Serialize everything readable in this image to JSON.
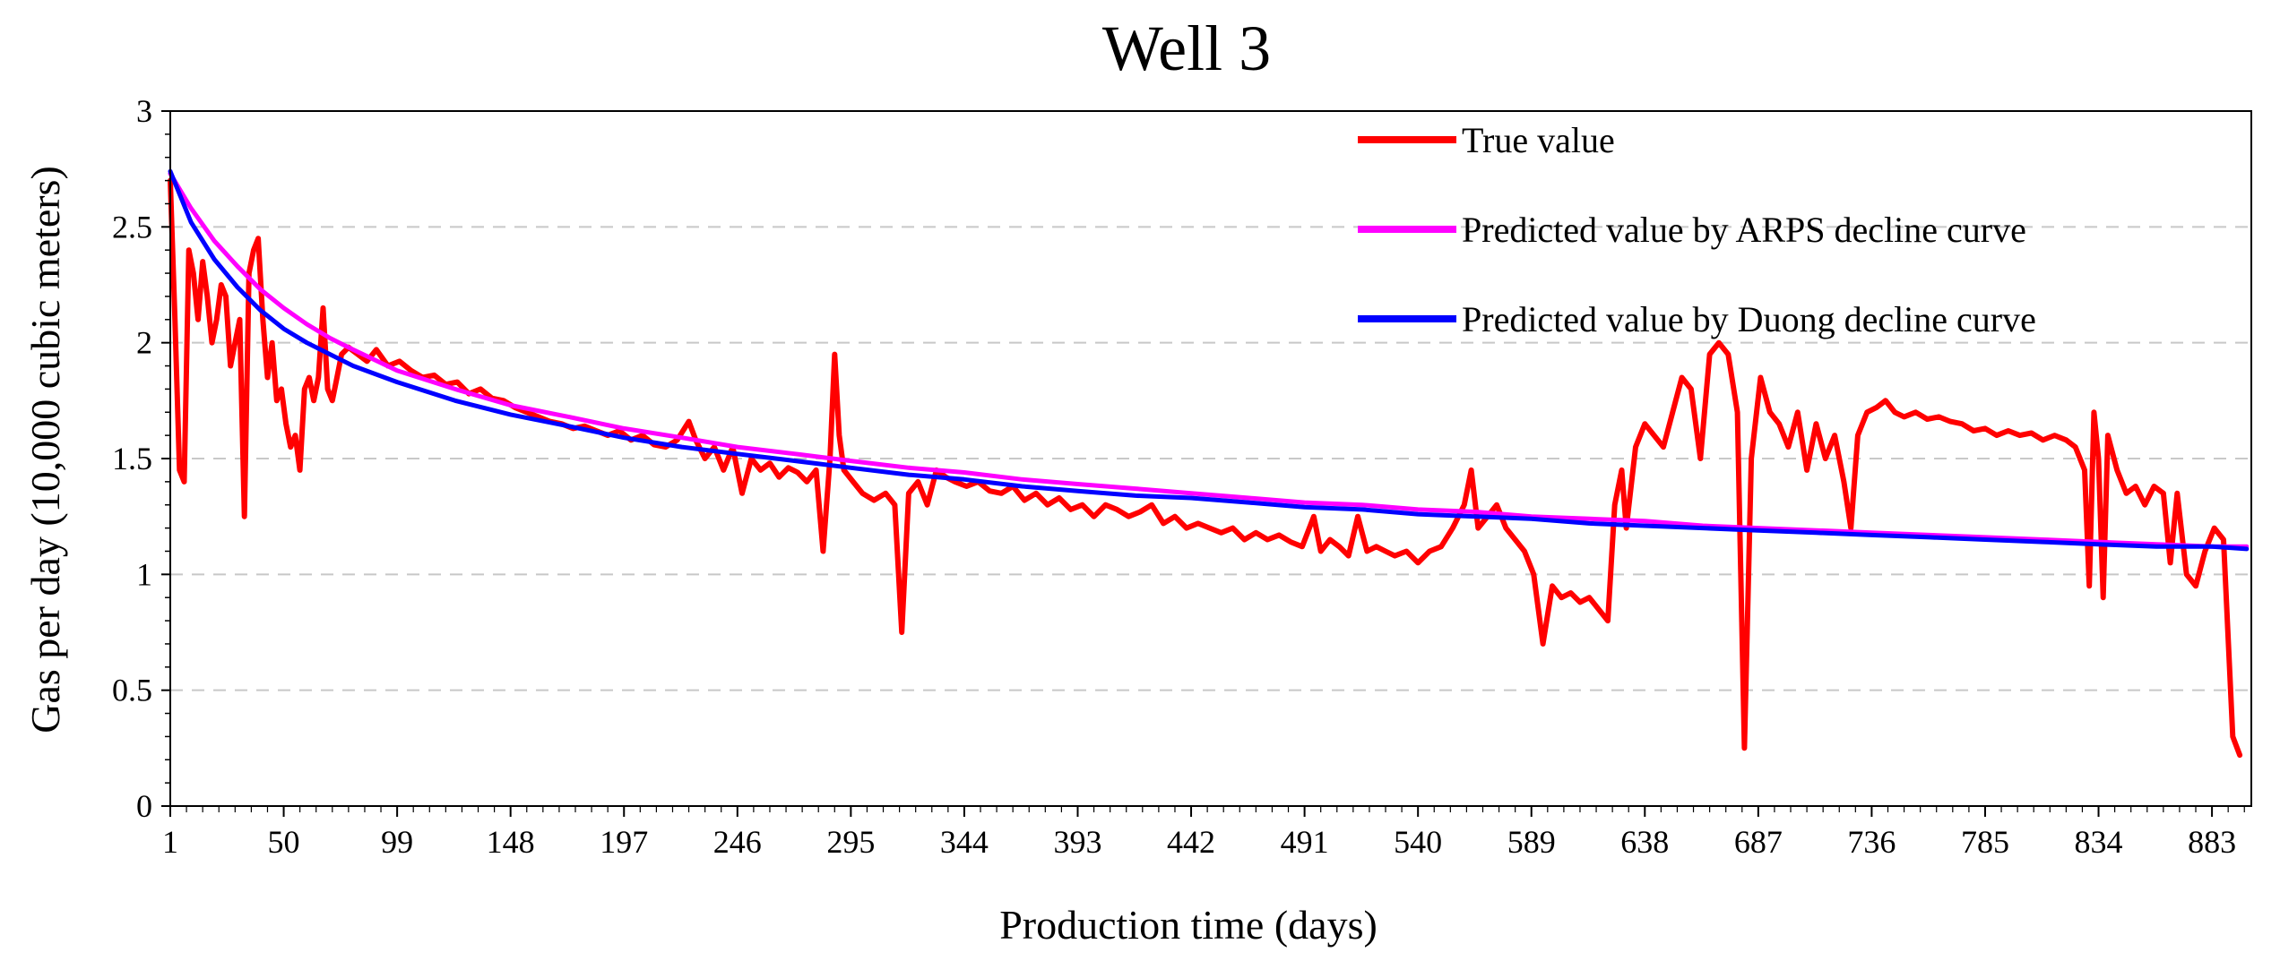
{
  "chart_data": {
    "type": "line",
    "title": "Well 3",
    "xlabel": "Production time (days)",
    "ylabel": "Gas per day (10,000 cubic meters)",
    "xlim": [
      1,
      900
    ],
    "ylim": [
      0,
      3
    ],
    "yticks": [
      0,
      0.5,
      1,
      1.5,
      2,
      2.5,
      3
    ],
    "ytick_labels": [
      "0",
      "0.5",
      "1",
      "1.5",
      "2",
      "2.5",
      "3"
    ],
    "xticks": [
      1,
      50,
      99,
      148,
      197,
      246,
      295,
      344,
      393,
      442,
      491,
      540,
      589,
      638,
      687,
      736,
      785,
      834,
      883
    ],
    "xtick_labels": [
      "1",
      "50",
      "99",
      "148",
      "197",
      "246",
      "295",
      "344",
      "393",
      "442",
      "491",
      "540",
      "589",
      "638",
      "687",
      "736",
      "785",
      "834",
      "883"
    ],
    "grid": "horizontal dashed",
    "legend_position": "top-right",
    "series": [
      {
        "name": "True value",
        "color": "#ff0000",
        "points": [
          [
            1,
            2.7
          ],
          [
            3,
            2.1
          ],
          [
            5,
            1.45
          ],
          [
            7,
            1.4
          ],
          [
            9,
            2.4
          ],
          [
            11,
            2.3
          ],
          [
            13,
            2.1
          ],
          [
            15,
            2.35
          ],
          [
            17,
            2.2
          ],
          [
            19,
            2.0
          ],
          [
            21,
            2.1
          ],
          [
            23,
            2.25
          ],
          [
            25,
            2.2
          ],
          [
            27,
            1.9
          ],
          [
            29,
            2.0
          ],
          [
            31,
            2.1
          ],
          [
            33,
            1.25
          ],
          [
            35,
            2.3
          ],
          [
            37,
            2.4
          ],
          [
            39,
            2.45
          ],
          [
            41,
            2.1
          ],
          [
            43,
            1.85
          ],
          [
            45,
            2.0
          ],
          [
            47,
            1.75
          ],
          [
            49,
            1.8
          ],
          [
            51,
            1.65
          ],
          [
            53,
            1.55
          ],
          [
            55,
            1.6
          ],
          [
            57,
            1.45
          ],
          [
            59,
            1.8
          ],
          [
            61,
            1.85
          ],
          [
            63,
            1.75
          ],
          [
            65,
            1.85
          ],
          [
            67,
            2.15
          ],
          [
            69,
            1.8
          ],
          [
            71,
            1.75
          ],
          [
            73,
            1.85
          ],
          [
            75,
            1.95
          ],
          [
            78,
            1.98
          ],
          [
            82,
            1.95
          ],
          [
            86,
            1.92
          ],
          [
            90,
            1.97
          ],
          [
            95,
            1.9
          ],
          [
            100,
            1.92
          ],
          [
            105,
            1.88
          ],
          [
            110,
            1.85
          ],
          [
            115,
            1.86
          ],
          [
            120,
            1.82
          ],
          [
            125,
            1.83
          ],
          [
            130,
            1.78
          ],
          [
            135,
            1.8
          ],
          [
            140,
            1.76
          ],
          [
            145,
            1.75
          ],
          [
            150,
            1.72
          ],
          [
            155,
            1.7
          ],
          [
            160,
            1.68
          ],
          [
            165,
            1.66
          ],
          [
            170,
            1.65
          ],
          [
            175,
            1.63
          ],
          [
            180,
            1.64
          ],
          [
            185,
            1.62
          ],
          [
            190,
            1.6
          ],
          [
            195,
            1.62
          ],
          [
            200,
            1.58
          ],
          [
            205,
            1.6
          ],
          [
            210,
            1.56
          ],
          [
            215,
            1.55
          ],
          [
            220,
            1.58
          ],
          [
            225,
            1.66
          ],
          [
            228,
            1.58
          ],
          [
            232,
            1.5
          ],
          [
            236,
            1.55
          ],
          [
            240,
            1.45
          ],
          [
            244,
            1.55
          ],
          [
            248,
            1.35
          ],
          [
            252,
            1.5
          ],
          [
            256,
            1.45
          ],
          [
            260,
            1.48
          ],
          [
            264,
            1.42
          ],
          [
            268,
            1.46
          ],
          [
            272,
            1.44
          ],
          [
            276,
            1.4
          ],
          [
            280,
            1.45
          ],
          [
            283,
            1.1
          ],
          [
            286,
            1.5
          ],
          [
            288,
            1.95
          ],
          [
            290,
            1.6
          ],
          [
            292,
            1.45
          ],
          [
            296,
            1.4
          ],
          [
            300,
            1.35
          ],
          [
            305,
            1.32
          ],
          [
            310,
            1.35
          ],
          [
            314,
            1.3
          ],
          [
            317,
            0.75
          ],
          [
            320,
            1.35
          ],
          [
            324,
            1.4
          ],
          [
            328,
            1.3
          ],
          [
            332,
            1.45
          ],
          [
            336,
            1.42
          ],
          [
            340,
            1.4
          ],
          [
            345,
            1.38
          ],
          [
            350,
            1.4
          ],
          [
            355,
            1.36
          ],
          [
            360,
            1.35
          ],
          [
            365,
            1.38
          ],
          [
            370,
            1.32
          ],
          [
            375,
            1.35
          ],
          [
            380,
            1.3
          ],
          [
            385,
            1.33
          ],
          [
            390,
            1.28
          ],
          [
            395,
            1.3
          ],
          [
            400,
            1.25
          ],
          [
            405,
            1.3
          ],
          [
            410,
            1.28
          ],
          [
            415,
            1.25
          ],
          [
            420,
            1.27
          ],
          [
            425,
            1.3
          ],
          [
            430,
            1.22
          ],
          [
            435,
            1.25
          ],
          [
            440,
            1.2
          ],
          [
            445,
            1.22
          ],
          [
            450,
            1.2
          ],
          [
            455,
            1.18
          ],
          [
            460,
            1.2
          ],
          [
            465,
            1.15
          ],
          [
            470,
            1.18
          ],
          [
            475,
            1.15
          ],
          [
            480,
            1.17
          ],
          [
            485,
            1.14
          ],
          [
            490,
            1.12
          ],
          [
            495,
            1.25
          ],
          [
            498,
            1.1
          ],
          [
            502,
            1.15
          ],
          [
            506,
            1.12
          ],
          [
            510,
            1.08
          ],
          [
            514,
            1.25
          ],
          [
            518,
            1.1
          ],
          [
            522,
            1.12
          ],
          [
            526,
            1.1
          ],
          [
            530,
            1.08
          ],
          [
            535,
            1.1
          ],
          [
            540,
            1.05
          ],
          [
            545,
            1.1
          ],
          [
            550,
            1.12
          ],
          [
            555,
            1.2
          ],
          [
            560,
            1.3
          ],
          [
            563,
            1.45
          ],
          [
            566,
            1.2
          ],
          [
            570,
            1.25
          ],
          [
            574,
            1.3
          ],
          [
            578,
            1.2
          ],
          [
            582,
            1.15
          ],
          [
            586,
            1.1
          ],
          [
            590,
            1.0
          ],
          [
            594,
            0.7
          ],
          [
            598,
            0.95
          ],
          [
            602,
            0.9
          ],
          [
            606,
            0.92
          ],
          [
            610,
            0.88
          ],
          [
            614,
            0.9
          ],
          [
            618,
            0.85
          ],
          [
            622,
            0.8
          ],
          [
            625,
            1.3
          ],
          [
            628,
            1.45
          ],
          [
            630,
            1.2
          ],
          [
            634,
            1.55
          ],
          [
            638,
            1.65
          ],
          [
            642,
            1.6
          ],
          [
            646,
            1.55
          ],
          [
            650,
            1.7
          ],
          [
            654,
            1.85
          ],
          [
            658,
            1.8
          ],
          [
            662,
            1.5
          ],
          [
            666,
            1.95
          ],
          [
            670,
            2.0
          ],
          [
            674,
            1.95
          ],
          [
            678,
            1.7
          ],
          [
            681,
            0.25
          ],
          [
            684,
            1.5
          ],
          [
            688,
            1.85
          ],
          [
            692,
            1.7
          ],
          [
            696,
            1.65
          ],
          [
            700,
            1.55
          ],
          [
            704,
            1.7
          ],
          [
            708,
            1.45
          ],
          [
            712,
            1.65
          ],
          [
            716,
            1.5
          ],
          [
            720,
            1.6
          ],
          [
            724,
            1.4
          ],
          [
            727,
            1.2
          ],
          [
            730,
            1.6
          ],
          [
            734,
            1.7
          ],
          [
            738,
            1.72
          ],
          [
            742,
            1.75
          ],
          [
            746,
            1.7
          ],
          [
            750,
            1.68
          ],
          [
            755,
            1.7
          ],
          [
            760,
            1.67
          ],
          [
            765,
            1.68
          ],
          [
            770,
            1.66
          ],
          [
            775,
            1.65
          ],
          [
            780,
            1.62
          ],
          [
            785,
            1.63
          ],
          [
            790,
            1.6
          ],
          [
            795,
            1.62
          ],
          [
            800,
            1.6
          ],
          [
            805,
            1.61
          ],
          [
            810,
            1.58
          ],
          [
            815,
            1.6
          ],
          [
            820,
            1.58
          ],
          [
            824,
            1.55
          ],
          [
            828,
            1.45
          ],
          [
            830,
            0.95
          ],
          [
            832,
            1.7
          ],
          [
            834,
            1.5
          ],
          [
            836,
            0.9
          ],
          [
            838,
            1.6
          ],
          [
            842,
            1.45
          ],
          [
            846,
            1.35
          ],
          [
            850,
            1.38
          ],
          [
            854,
            1.3
          ],
          [
            858,
            1.38
          ],
          [
            862,
            1.35
          ],
          [
            865,
            1.05
          ],
          [
            868,
            1.35
          ],
          [
            872,
            1.0
          ],
          [
            876,
            0.95
          ],
          [
            880,
            1.1
          ],
          [
            884,
            1.2
          ],
          [
            888,
            1.15
          ],
          [
            892,
            0.3
          ],
          [
            895,
            0.22
          ]
        ]
      },
      {
        "name": "Predicted value by ARPS decline curve",
        "color": "#ff00ff",
        "points": [
          [
            1,
            2.73
          ],
          [
            10,
            2.58
          ],
          [
            20,
            2.44
          ],
          [
            30,
            2.33
          ],
          [
            40,
            2.23
          ],
          [
            50,
            2.15
          ],
          [
            60,
            2.08
          ],
          [
            70,
            2.02
          ],
          [
            80,
            1.97
          ],
          [
            99,
            1.88
          ],
          [
            124,
            1.8
          ],
          [
            148,
            1.73
          ],
          [
            173,
            1.68
          ],
          [
            197,
            1.63
          ],
          [
            222,
            1.59
          ],
          [
            246,
            1.55
          ],
          [
            271,
            1.52
          ],
          [
            295,
            1.49
          ],
          [
            320,
            1.46
          ],
          [
            344,
            1.44
          ],
          [
            369,
            1.41
          ],
          [
            393,
            1.39
          ],
          [
            418,
            1.37
          ],
          [
            442,
            1.35
          ],
          [
            467,
            1.33
          ],
          [
            491,
            1.31
          ],
          [
            516,
            1.3
          ],
          [
            540,
            1.28
          ],
          [
            565,
            1.27
          ],
          [
            589,
            1.25
          ],
          [
            614,
            1.24
          ],
          [
            638,
            1.23
          ],
          [
            663,
            1.21
          ],
          [
            687,
            1.2
          ],
          [
            712,
            1.19
          ],
          [
            736,
            1.18
          ],
          [
            761,
            1.17
          ],
          [
            785,
            1.16
          ],
          [
            810,
            1.15
          ],
          [
            834,
            1.14
          ],
          [
            859,
            1.13
          ],
          [
            883,
            1.12
          ],
          [
            898,
            1.12
          ]
        ]
      },
      {
        "name": "Predicted value by Duong decline curve",
        "color": "#0000ff",
        "points": [
          [
            1,
            2.74
          ],
          [
            10,
            2.52
          ],
          [
            20,
            2.36
          ],
          [
            30,
            2.24
          ],
          [
            40,
            2.14
          ],
          [
            50,
            2.06
          ],
          [
            60,
            2.0
          ],
          [
            70,
            1.95
          ],
          [
            80,
            1.9
          ],
          [
            99,
            1.83
          ],
          [
            124,
            1.75
          ],
          [
            148,
            1.69
          ],
          [
            173,
            1.64
          ],
          [
            197,
            1.59
          ],
          [
            222,
            1.55
          ],
          [
            246,
            1.52
          ],
          [
            271,
            1.49
          ],
          [
            295,
            1.46
          ],
          [
            320,
            1.43
          ],
          [
            344,
            1.41
          ],
          [
            369,
            1.38
          ],
          [
            393,
            1.36
          ],
          [
            418,
            1.34
          ],
          [
            442,
            1.33
          ],
          [
            467,
            1.31
          ],
          [
            491,
            1.29
          ],
          [
            516,
            1.28
          ],
          [
            540,
            1.26
          ],
          [
            565,
            1.25
          ],
          [
            589,
            1.24
          ],
          [
            614,
            1.22
          ],
          [
            638,
            1.21
          ],
          [
            663,
            1.2
          ],
          [
            687,
            1.19
          ],
          [
            712,
            1.18
          ],
          [
            736,
            1.17
          ],
          [
            761,
            1.16
          ],
          [
            785,
            1.15
          ],
          [
            810,
            1.14
          ],
          [
            834,
            1.13
          ],
          [
            859,
            1.12
          ],
          [
            883,
            1.12
          ],
          [
            898,
            1.11
          ]
        ]
      }
    ]
  }
}
